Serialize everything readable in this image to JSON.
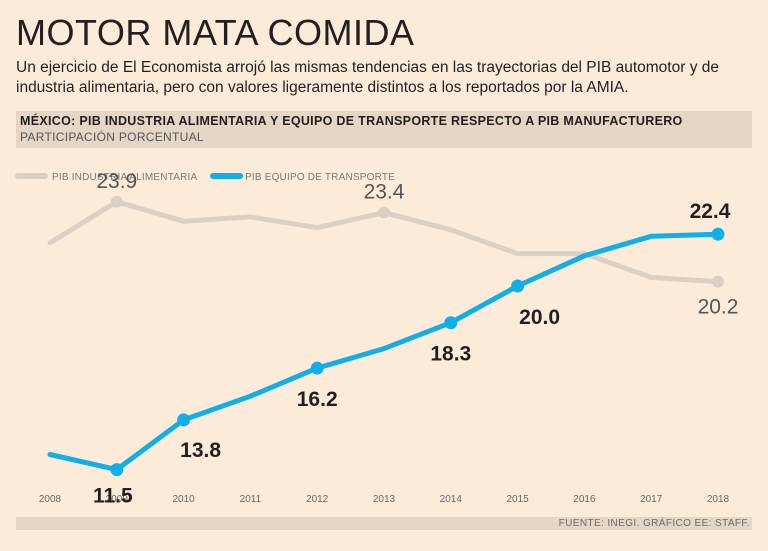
{
  "title": "MOTOR MATA COMIDA",
  "subtitle": "Un ejercicio de El Economista arrojó las mismas tendencias en las trayectorias del PIB automotor y de industria alimentaria, pero con valores ligeramente distintos a los reportados por la AMIA.",
  "source": "FUENTE: INEGI. GRÁFICO EE: STAFF.",
  "colors": {
    "background": "#fdebd9",
    "band": "#e6d6c5",
    "series_food": "#dcd0c4",
    "series_transport": "#12aee8"
  },
  "chart_data": {
    "type": "line",
    "title": "MÉXICO: PIB INDUSTRIA ALIMENTARIA Y EQUIPO DE TRANSPORTE RESPECTO A PIB MANUFACTURERO",
    "subtitle": "PARTICIPACIÓN PORCENTUAL",
    "xlabel": "",
    "ylabel": "",
    "x": [
      "2008",
      "2009",
      "2010",
      "2011",
      "2012",
      "2013",
      "2014",
      "2015",
      "2016",
      "2017",
      "2018"
    ],
    "ylim": [
      10,
      25
    ],
    "grid": false,
    "legend": "top-left",
    "series": [
      {
        "name": "PIB INDUSTRIA ALIMENTARIA",
        "values": [
          22.0,
          23.9,
          23.0,
          23.2,
          22.7,
          23.4,
          22.6,
          21.5,
          21.5,
          20.4,
          20.2
        ],
        "labels": {
          "1": "23.9",
          "5": "23.4",
          "10": "20.2"
        }
      },
      {
        "name": "PIB EQUIPO DE TRANSPORTE",
        "values": [
          12.2,
          11.5,
          13.8,
          14.9,
          16.2,
          17.1,
          18.3,
          20.0,
          21.4,
          22.3,
          22.4
        ],
        "labels": {
          "1": "11.5",
          "2": "13.8",
          "4": "16.2",
          "6": "18.3",
          "7": "20.0",
          "10": "22.4"
        }
      }
    ]
  }
}
